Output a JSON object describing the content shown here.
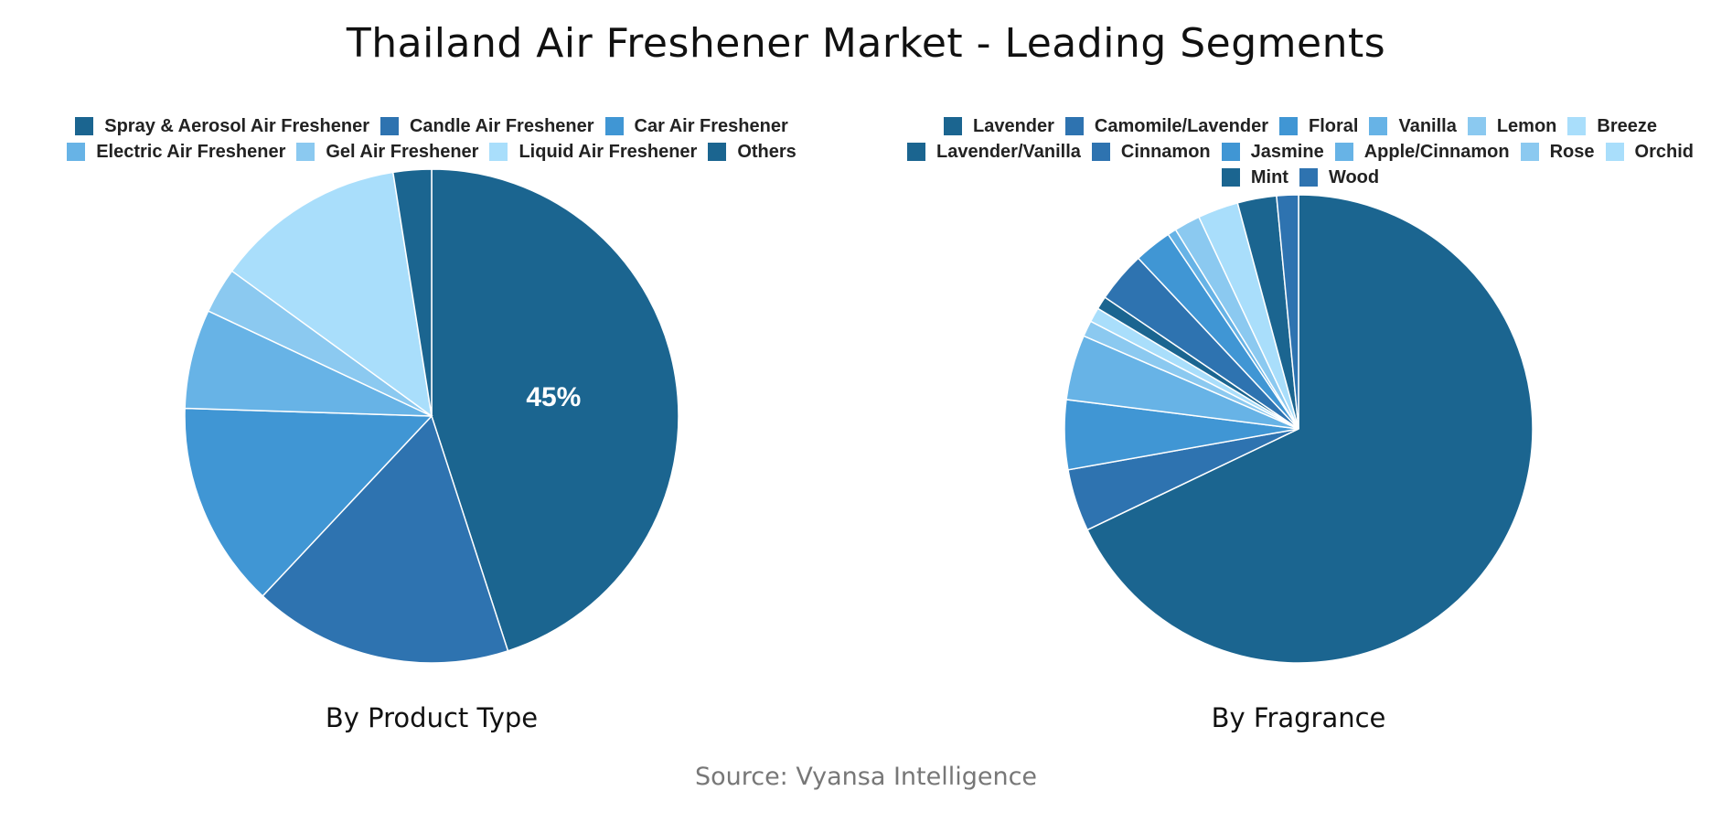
{
  "title": "Thailand Air Freshener Market - Leading Segments",
  "source": "Source: Vyansa Intelligence",
  "colors": [
    "#1b6590",
    "#2e73b0",
    "#4096d4",
    "#67b3e6",
    "#8bc9f0",
    "#a9defb"
  ],
  "chart_data": [
    {
      "type": "pie",
      "title": "By Product Type",
      "legend_position": "top",
      "categories": [
        "Spray & Aerosol Air Freshener",
        "Candle Air Freshener",
        "Car Air Freshener",
        "Electric Air Freshener",
        "Gel Air Freshener",
        "Liquid Air Freshener",
        "Others"
      ],
      "values": [
        45,
        17,
        13.5,
        6.5,
        3,
        12.5,
        2.5
      ],
      "data_labels": [
        "45%",
        "",
        "",
        "",
        "",
        "",
        ""
      ]
    },
    {
      "type": "pie",
      "title": "By Fragrance",
      "legend_position": "top",
      "categories": [
        "Lavender",
        "Camomile/Lavender",
        "Floral",
        "Vanilla",
        "Lemon",
        "Breeze",
        "Lavender/Vanilla",
        "Cinnamon",
        "Jasmine",
        "Apple/Cinnamon",
        "Rose",
        "Orchid",
        "Mint",
        "Wood"
      ],
      "values": [
        67.9,
        4.3,
        4.8,
        4.5,
        1.1,
        1.0,
        0.9,
        3.5,
        2.6,
        0.6,
        1.8,
        2.8,
        2.7,
        1.5
      ],
      "data_labels": []
    }
  ]
}
